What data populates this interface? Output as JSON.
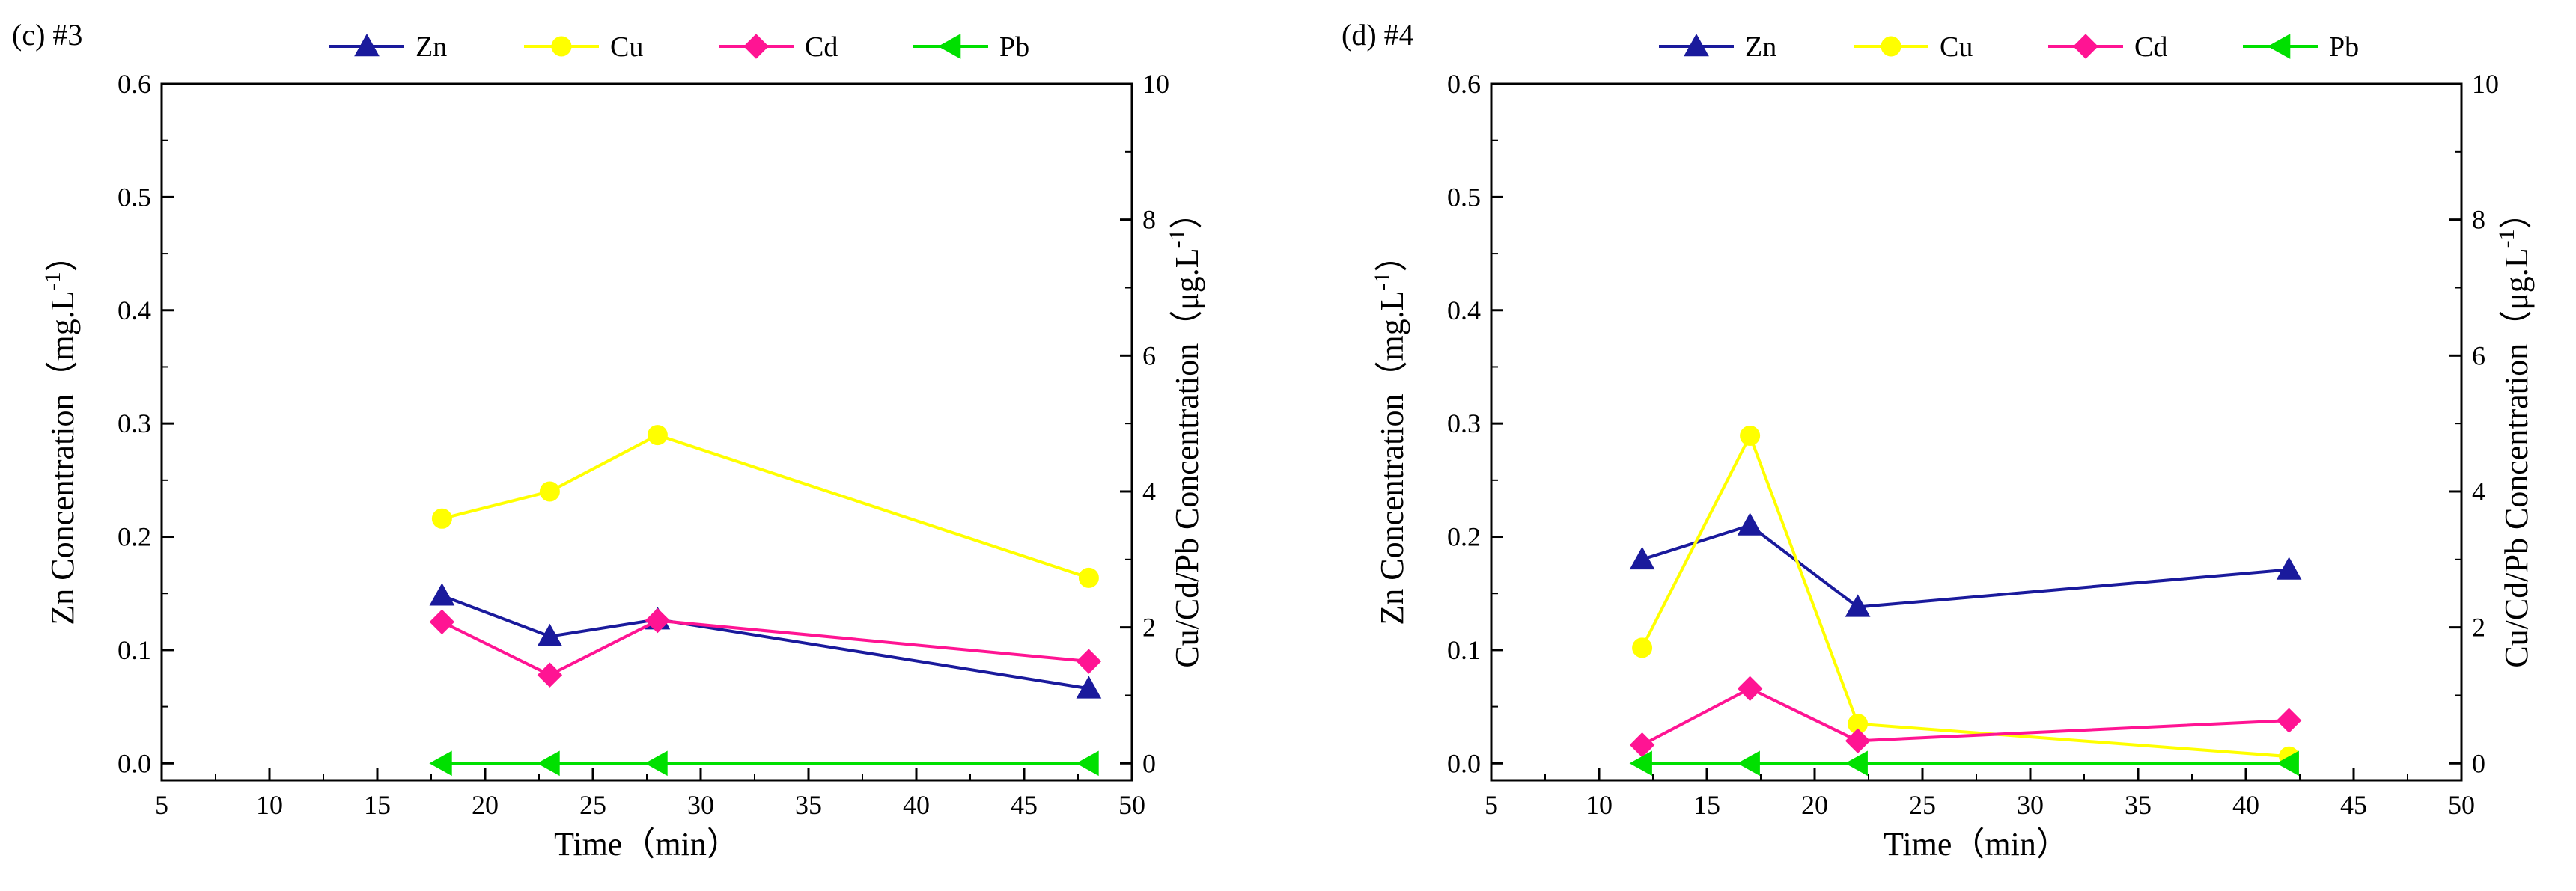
{
  "chart_data": [
    {
      "type": "line",
      "panel_label": "(c) #3",
      "xlabel": "Time（min）",
      "ylabel_left": "Zn Concentration（mg.L",
      "ylabel_left_sup": "-1",
      "ylabel_left_end": "）",
      "ylabel_right": "Cu/Cd/Pb Concentration（μg.L",
      "ylabel_right_sup": "-1",
      "ylabel_right_end": "）",
      "xlim": [
        5,
        50
      ],
      "ylim_left": [
        -0.015,
        0.6
      ],
      "ylim_right": [
        -0.25,
        10
      ],
      "x_ticks": [
        "5",
        "10",
        "15",
        "20",
        "25",
        "30",
        "35",
        "40",
        "45",
        "50"
      ],
      "y_left_ticks": [
        "0.0",
        "0.1",
        "0.2",
        "0.3",
        "0.4",
        "0.5",
        "0.6"
      ],
      "y_right_ticks": [
        "0",
        "2",
        "4",
        "6",
        "8",
        "10"
      ],
      "x": [
        18,
        23,
        28,
        48
      ],
      "series": [
        {
          "name": "Zn",
          "axis": "left",
          "color": "#1a1a9c",
          "marker": "triangle-up",
          "values": [
            0.148,
            0.112,
            0.127,
            0.066
          ]
        },
        {
          "name": "Cu",
          "axis": "right",
          "color": "#ffff00",
          "marker": "circle",
          "values": [
            3.6,
            4.0,
            4.83,
            2.73
          ]
        },
        {
          "name": "Cd",
          "axis": "right",
          "color": "#ff1493",
          "marker": "diamond",
          "values": [
            2.08,
            1.3,
            2.1,
            1.5
          ]
        },
        {
          "name": "Pb",
          "axis": "right",
          "color": "#00e000",
          "marker": "triangle-left",
          "values": [
            0.0,
            0.0,
            0.0,
            0.0
          ]
        }
      ]
    },
    {
      "type": "line",
      "panel_label": "(d) #4",
      "xlabel": "Time（min）",
      "ylabel_left": "Zn Concentration（mg.L",
      "ylabel_left_sup": "-1",
      "ylabel_left_end": "）",
      "ylabel_right": "Cu/Cd/Pb Concentration（μg.L",
      "ylabel_right_sup": "-1",
      "ylabel_right_end": "）",
      "xlim": [
        5,
        50
      ],
      "ylim_left": [
        -0.015,
        0.6
      ],
      "ylim_right": [
        -0.25,
        10
      ],
      "x_ticks": [
        "5",
        "10",
        "15",
        "20",
        "25",
        "30",
        "35",
        "40",
        "45",
        "50"
      ],
      "y_left_ticks": [
        "0.0",
        "0.1",
        "0.2",
        "0.3",
        "0.4",
        "0.5",
        "0.6"
      ],
      "y_right_ticks": [
        "0",
        "2",
        "4",
        "6",
        "8",
        "10"
      ],
      "x": [
        12,
        17,
        22,
        42
      ],
      "series": [
        {
          "name": "Zn",
          "axis": "left",
          "color": "#1a1a9c",
          "marker": "triangle-up",
          "values": [
            0.18,
            0.21,
            0.138,
            0.171
          ]
        },
        {
          "name": "Cu",
          "axis": "right",
          "color": "#ffff00",
          "marker": "circle",
          "values": [
            1.7,
            4.82,
            0.58,
            0.1
          ]
        },
        {
          "name": "Cd",
          "axis": "right",
          "color": "#ff1493",
          "marker": "diamond",
          "values": [
            0.27,
            1.1,
            0.33,
            0.63
          ]
        },
        {
          "name": "Pb",
          "axis": "right",
          "color": "#00e000",
          "marker": "triangle-left",
          "values": [
            0.0,
            0.0,
            0.0,
            0.0
          ]
        }
      ]
    }
  ]
}
